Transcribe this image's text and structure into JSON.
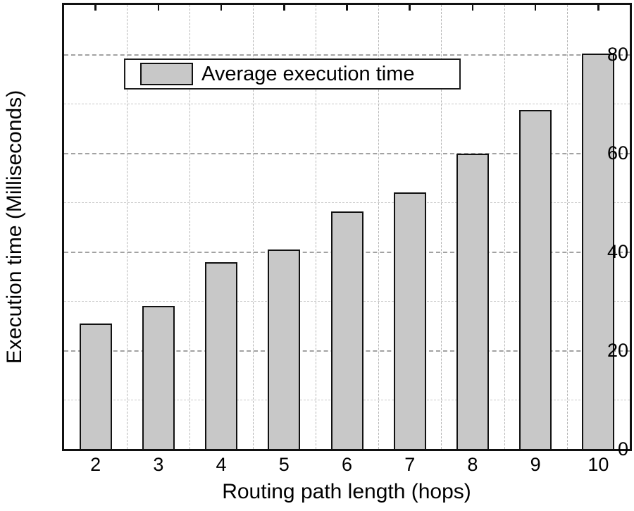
{
  "chart_data": {
    "type": "bar",
    "title": "",
    "xlabel": "Routing path length (hops)",
    "ylabel": "Execution time (Milliseconds)",
    "categories": [
      "2",
      "3",
      "4",
      "5",
      "6",
      "7",
      "8",
      "9",
      "10"
    ],
    "series": [
      {
        "name": "Average execution time",
        "values": [
          25.5,
          29.0,
          37.8,
          40.5,
          48.2,
          52.0,
          59.8,
          68.7,
          80.2
        ]
      }
    ],
    "ylim": [
      0,
      90
    ],
    "yticks_major": [
      0,
      20,
      40,
      60,
      80
    ],
    "yticks_minor": [
      10,
      30,
      50,
      70
    ],
    "ytick_labels": [
      "0",
      "20",
      "40",
      "60",
      "80"
    ],
    "grid": {
      "horizontal_major": "dashed",
      "horizontal_minor": "light dashed",
      "vertical": "dashed at category boundaries"
    },
    "legend": {
      "label": "Average execution time",
      "position": "upper left"
    },
    "colors": {
      "bar_fill": "#c8c8c8",
      "bar_edge": "#111111",
      "grid_major": "#a2a2a2",
      "grid_minor": "#c9c9c9",
      "grid_vertical": "#b5b5b5",
      "axis": "#111111",
      "background": "#ffffff",
      "text": "#000000"
    }
  }
}
